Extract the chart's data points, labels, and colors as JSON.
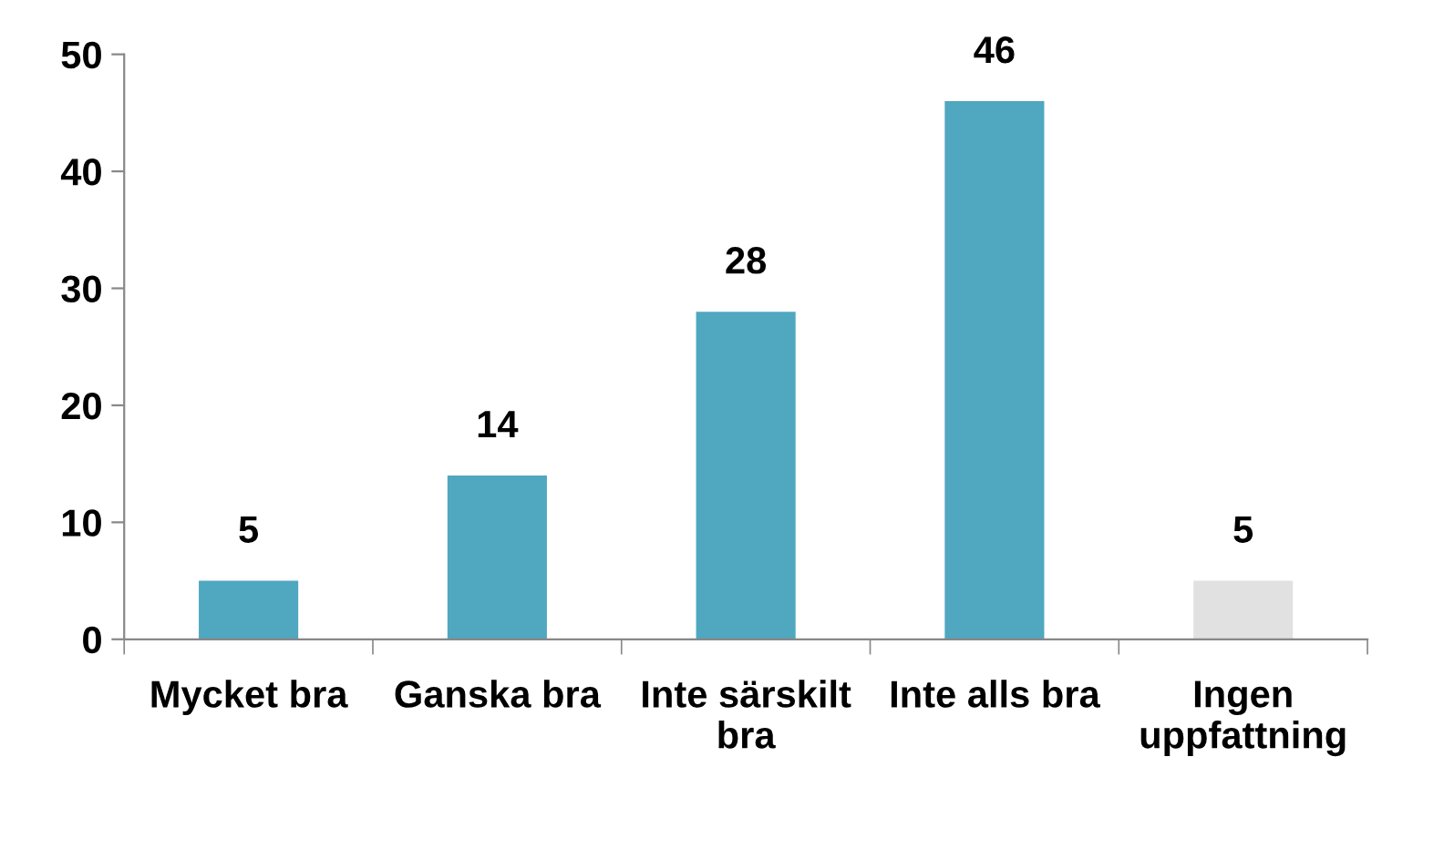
{
  "chart_data": {
    "type": "bar",
    "categories": [
      "Mycket bra",
      "Ganska bra",
      "Inte särskilt\nbra",
      "Inte alls bra",
      "Ingen\nuppfattning"
    ],
    "values": [
      5,
      14,
      28,
      46,
      5
    ],
    "colors": [
      "#4fa7c0",
      "#4fa7c0",
      "#4fa7c0",
      "#4fa7c0",
      "#e1e1e1"
    ],
    "ylim": [
      0,
      50
    ],
    "yticks": [
      0,
      10,
      20,
      30,
      40,
      50
    ],
    "data_labels": true,
    "grid": false,
    "legend": false
  }
}
